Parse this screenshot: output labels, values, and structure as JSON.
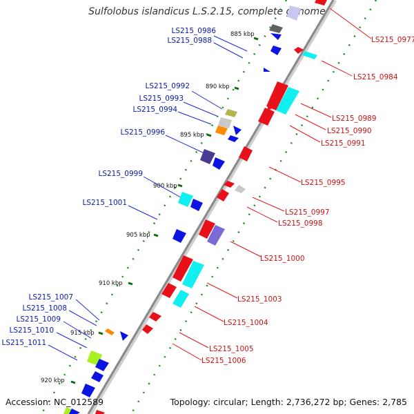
{
  "title": "Sulfolobus islandicus L.S.2.15, complete genome",
  "footer": {
    "accession": "Accession: NC_012589",
    "topology": "Topology: circular; Length: 2,736,272 bp; Genes: 2,785"
  },
  "ticks": [
    "885 kbp",
    "890 kbp",
    "895 kbp",
    "900 kbp",
    "905 kbp",
    "910 kbp",
    "915 kbp",
    "920 kbp"
  ],
  "genes_forward": [
    "LS215_0986",
    "LS215_0988",
    "LS215_0992",
    "LS215_0993",
    "LS215_0994",
    "LS215_0996",
    "LS215_0999",
    "LS215_1001",
    "LS215_1007",
    "LS215_1008",
    "LS215_1009",
    "LS215_1010",
    "LS215_1011"
  ],
  "genes_reverse": [
    "LS215_0977",
    "LS215_0984",
    "LS215_0989",
    "LS215_0990",
    "LS215_0991",
    "LS215_0995",
    "LS215_0997",
    "LS215_0998",
    "LS215_1000",
    "LS215_1003",
    "LS215_1004",
    "LS215_1005",
    "LS215_1006"
  ],
  "colors": {
    "forward_label": "#0a1aa8",
    "reverse_label": "#cc1111",
    "forward_gene": "#0b14e0",
    "reverse_gene": "#e8101a",
    "cyan_gene": "#10f0f0",
    "backbone": "#9a9a9a",
    "gc_dots": "#1a8a1a"
  }
}
